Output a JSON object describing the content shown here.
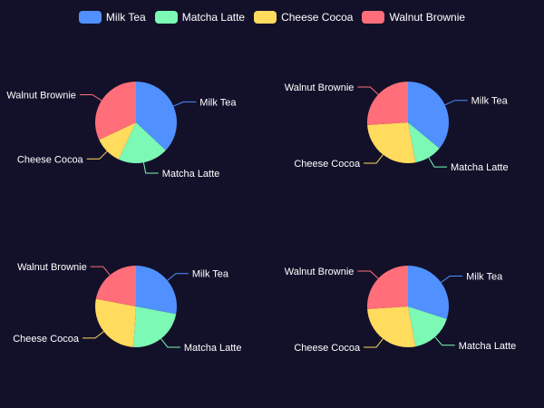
{
  "chart_data": [
    {
      "type": "pie",
      "categories": [
        "Milk Tea",
        "Matcha Latte",
        "Cheese Cocoa",
        "Walnut Brownie"
      ],
      "values": [
        37,
        20,
        11,
        32
      ]
    },
    {
      "type": "pie",
      "categories": [
        "Milk Tea",
        "Matcha Latte",
        "Cheese Cocoa",
        "Walnut Brownie"
      ],
      "values": [
        36,
        11,
        27,
        26
      ]
    },
    {
      "type": "pie",
      "categories": [
        "Milk Tea",
        "Matcha Latte",
        "Cheese Cocoa",
        "Walnut Brownie"
      ],
      "values": [
        28,
        23,
        27,
        22
      ]
    },
    {
      "type": "pie",
      "categories": [
        "Milk Tea",
        "Matcha Latte",
        "Cheese Cocoa",
        "Walnut Brownie"
      ],
      "values": [
        30,
        17,
        27,
        26
      ]
    }
  ],
  "legend": {
    "items": [
      {
        "label": "Milk Tea",
        "color": "#5090ff"
      },
      {
        "label": "Matcha Latte",
        "color": "#7cf9b4"
      },
      {
        "label": "Cheese Cocoa",
        "color": "#ffdb5e"
      },
      {
        "label": "Walnut Brownie",
        "color": "#ff6e79"
      }
    ]
  },
  "colors": {
    "background": "#13112a",
    "label_text": "#ffffff"
  }
}
